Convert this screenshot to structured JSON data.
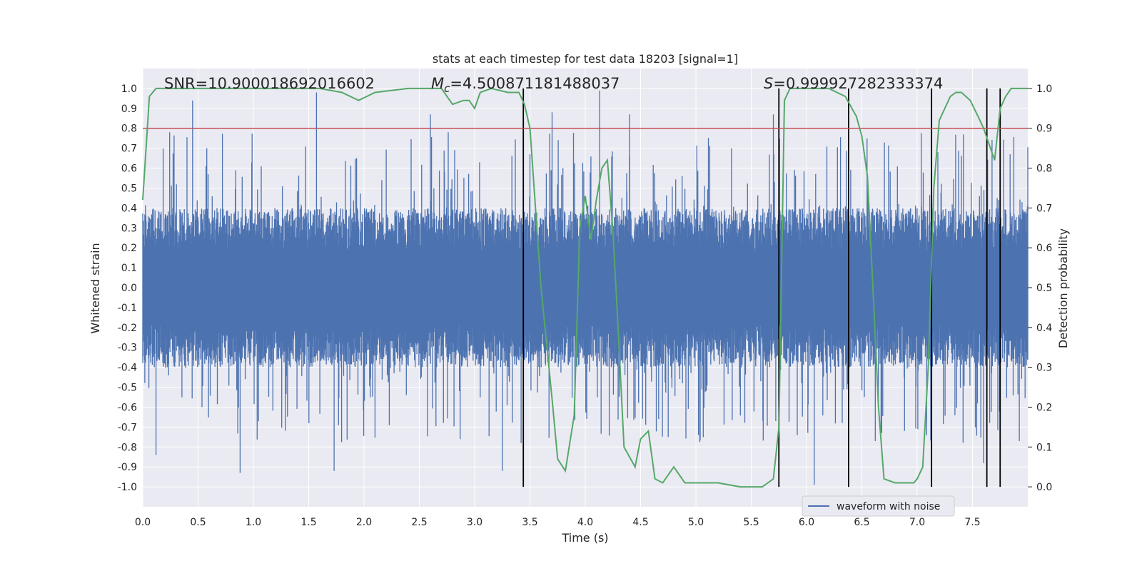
{
  "chart_data": {
    "type": "line",
    "title": "stats at each timestep for test data 18203 [signal=1]",
    "xlabel": "Time (s)",
    "ylabel": "Whitened strain",
    "y2label": "Detection probability",
    "xlim": [
      0,
      8
    ],
    "ylim": [
      -1.1,
      1.1
    ],
    "y2lim": [
      -0.05,
      1.05
    ],
    "xticks": [
      "0.0",
      "0.5",
      "1.0",
      "1.5",
      "2.0",
      "2.5",
      "3.0",
      "3.5",
      "4.0",
      "4.5",
      "5.0",
      "5.5",
      "6.0",
      "6.5",
      "7.0",
      "7.5"
    ],
    "yticks": [
      "1.0",
      "0.9",
      "0.8",
      "0.7",
      "0.6",
      "0.5",
      "0.4",
      "0.3",
      "0.2",
      "0.1",
      "0.0",
      "-0.1",
      "-0.2",
      "-0.3",
      "-0.4",
      "-0.5",
      "-0.6",
      "-0.7",
      "-0.8",
      "-0.9",
      "-1.0"
    ],
    "y2ticks": [
      "1.0",
      "0.9",
      "0.8",
      "0.7",
      "0.6",
      "0.5",
      "0.4",
      "0.3",
      "0.2",
      "0.1",
      "0.0"
    ],
    "grid": true,
    "legend_position": "lower-right",
    "annotations": {
      "snr": "SNR=10.900018692016602",
      "mc_symbol": "M",
      "mc_sub": "c",
      "mc_value": "=4.500871181488037",
      "s_symbol": "S",
      "s_value": "=0.999927282333374"
    },
    "series": [
      {
        "name": "waveform with noise",
        "axis": "left",
        "color": "#4c72b0",
        "kind": "noise",
        "typical_amplitude": 0.4,
        "peaks": [
          {
            "x": 0.45,
            "y": 0.94
          },
          {
            "x": 1.57,
            "y": 0.98
          },
          {
            "x": 4.13,
            "y": 0.99
          },
          {
            "x": 2.6,
            "y": 0.87
          },
          {
            "x": 3.7,
            "y": 0.88
          },
          {
            "x": 4.4,
            "y": 0.87
          },
          {
            "x": 5.7,
            "y": 0.87
          },
          {
            "x": 0.88,
            "y": -0.93
          },
          {
            "x": 1.73,
            "y": -0.92
          },
          {
            "x": 3.25,
            "y": -0.92
          },
          {
            "x": 6.07,
            "y": -0.99
          },
          {
            "x": 7.6,
            "y": -0.88
          },
          {
            "x": 0.12,
            "y": -0.84
          },
          {
            "x": 3.42,
            "y": -0.78
          }
        ]
      },
      {
        "name": "threshold",
        "axis": "right",
        "color": "#c44e52",
        "x": [
          0,
          8
        ],
        "y": [
          0.9,
          0.9
        ]
      },
      {
        "name": "detection probability",
        "axis": "right",
        "color": "#55a868",
        "x": [
          0.0,
          0.06,
          0.12,
          0.2,
          0.4,
          0.8,
          1.2,
          1.6,
          1.8,
          1.95,
          2.1,
          2.4,
          2.7,
          2.8,
          2.9,
          2.95,
          3.0,
          3.05,
          3.15,
          3.3,
          3.4,
          3.45,
          3.5,
          3.6,
          3.7,
          3.75,
          3.82,
          3.9,
          3.95,
          4.0,
          4.05,
          4.1,
          4.15,
          4.2,
          4.25,
          4.3,
          4.35,
          4.45,
          4.5,
          4.57,
          4.63,
          4.7,
          4.8,
          4.9,
          5.0,
          5.2,
          5.4,
          5.6,
          5.65,
          5.7,
          5.75,
          5.8,
          5.85,
          5.95,
          6.0,
          6.2,
          6.35,
          6.45,
          6.5,
          6.55,
          6.6,
          6.65,
          6.7,
          6.8,
          6.9,
          6.97,
          7.0,
          7.05,
          7.1,
          7.15,
          7.2,
          7.3,
          7.35,
          7.4,
          7.48,
          7.55,
          7.6,
          7.65,
          7.7,
          7.75,
          7.8,
          7.85,
          7.9,
          8.0
        ],
        "y": [
          0.72,
          0.98,
          1.0,
          1.0,
          1.0,
          1.0,
          1.0,
          1.0,
          0.99,
          0.97,
          0.99,
          1.0,
          1.0,
          0.96,
          0.97,
          0.97,
          0.95,
          0.99,
          1.0,
          0.99,
          0.99,
          0.96,
          0.9,
          0.5,
          0.22,
          0.07,
          0.04,
          0.18,
          0.65,
          0.73,
          0.62,
          0.72,
          0.8,
          0.82,
          0.64,
          0.38,
          0.1,
          0.05,
          0.12,
          0.14,
          0.02,
          0.01,
          0.05,
          0.01,
          0.01,
          0.01,
          0.0,
          0.0,
          0.01,
          0.02,
          0.15,
          0.97,
          1.0,
          1.0,
          1.0,
          1.0,
          0.98,
          0.93,
          0.88,
          0.78,
          0.5,
          0.2,
          0.02,
          0.01,
          0.01,
          0.01,
          0.02,
          0.05,
          0.3,
          0.75,
          0.92,
          0.98,
          0.99,
          0.99,
          0.97,
          0.93,
          0.9,
          0.86,
          0.82,
          0.95,
          0.98,
          1.0,
          1.0,
          1.0
        ]
      }
    ],
    "vertical_markers": [
      3.44,
      5.75,
      6.38,
      7.13,
      7.63,
      7.75
    ],
    "vertical_marker_color": "#000000"
  }
}
